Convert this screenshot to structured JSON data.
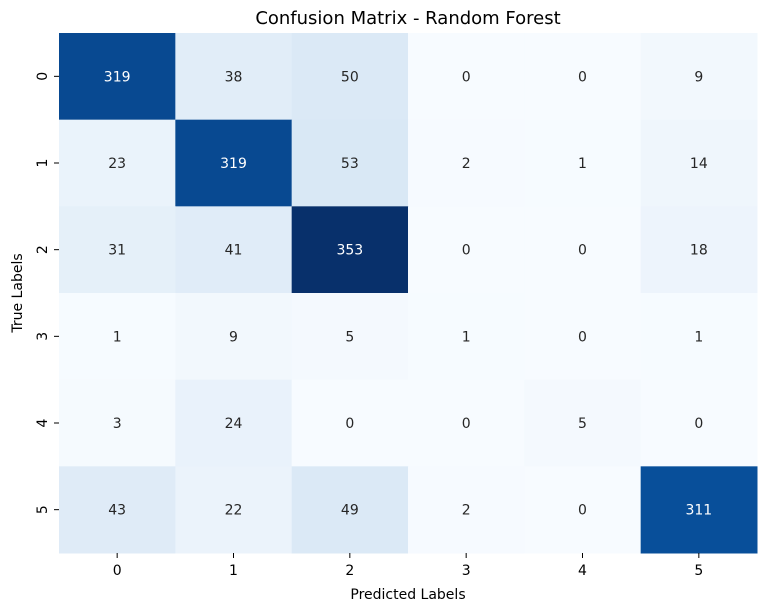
{
  "chart_data": {
    "type": "heatmap",
    "title": "Confusion Matrix - Random Forest",
    "xlabel": "Predicted Labels",
    "ylabel": "True Labels",
    "x_categories": [
      "0",
      "1",
      "2",
      "3",
      "4",
      "5"
    ],
    "y_categories": [
      "0",
      "1",
      "2",
      "3",
      "4",
      "5"
    ],
    "values": [
      [
        319,
        38,
        50,
        0,
        0,
        9
      ],
      [
        23,
        319,
        53,
        2,
        1,
        14
      ],
      [
        31,
        41,
        353,
        0,
        0,
        18
      ],
      [
        1,
        9,
        5,
        1,
        0,
        1
      ],
      [
        3,
        24,
        0,
        0,
        5,
        0
      ],
      [
        43,
        22,
        49,
        2,
        0,
        311
      ]
    ],
    "colormap": "Blues",
    "vmin": 0,
    "vmax": 353,
    "colorbar": false,
    "low_color": "#f7fbff",
    "high_color": "#08306b",
    "text_dark": "#262626",
    "text_light": "#ffffff"
  }
}
